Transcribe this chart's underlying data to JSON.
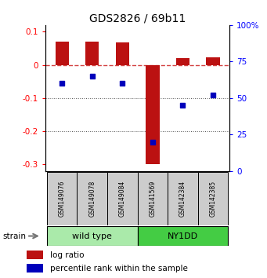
{
  "title": "GDS2826 / 69b11",
  "samples": [
    "GSM149076",
    "GSM149078",
    "GSM149084",
    "GSM141569",
    "GSM142384",
    "GSM142385"
  ],
  "log_ratio": [
    0.07,
    0.07,
    0.068,
    -0.3,
    0.02,
    0.022
  ],
  "percentile_rank": [
    60,
    65,
    60,
    20,
    45,
    52
  ],
  "groups": [
    {
      "label": "wild type",
      "start": 0,
      "end": 3,
      "color": "#90EE90"
    },
    {
      "label": "NY1DD",
      "start": 3,
      "end": 6,
      "color": "#33CC33"
    }
  ],
  "left_ylim": [
    -0.32,
    0.12
  ],
  "left_yticks": [
    0.1,
    0.0,
    -0.1,
    -0.2,
    -0.3
  ],
  "left_yticklabels": [
    "0.1",
    "0",
    "-0.1",
    "-0.2",
    "-0.3"
  ],
  "right_ylim": [
    0,
    100
  ],
  "right_yticks": [
    0,
    25,
    50,
    75,
    100
  ],
  "right_yticklabels": [
    "0",
    "25",
    "50",
    "75",
    "100%"
  ],
  "bar_color": "#BB1111",
  "dot_color": "#0000BB",
  "zero_line_color": "#CC2222",
  "dot_line_color": "#000077",
  "grid_line_color": "#555555",
  "legend_bar_label": "log ratio",
  "legend_dot_label": "percentile rank within the sample",
  "sample_box_color": "#CCCCCC",
  "wild_type_color": "#AAEAAA",
  "ny1dd_color": "#44CC44",
  "strain_label": "strain"
}
